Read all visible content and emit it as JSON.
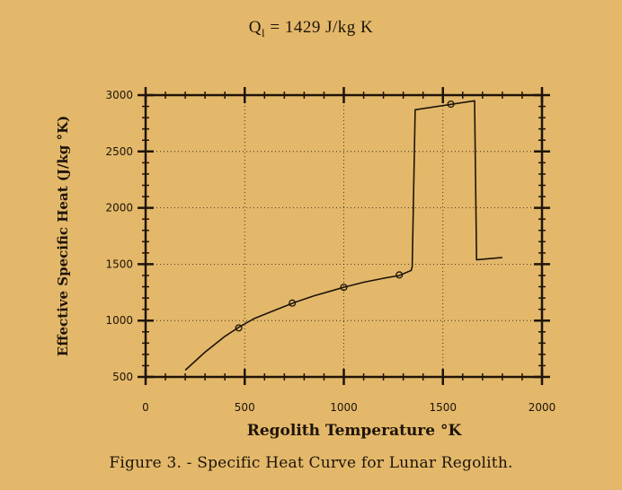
{
  "header": {
    "q_symbol": "Q",
    "q_subscript": "l",
    "q_value": "= 1429 J/kg K"
  },
  "caption": "Figure 3. - Specific Heat Curve for Lunar  Regolith.",
  "chart_data": {
    "type": "line",
    "xlabel": "Regolith Temperature °K",
    "ylabel": "Effective Specific Heat (J/kg °K)",
    "xlim": [
      0,
      2000
    ],
    "ylim": [
      500,
      3000
    ],
    "x_ticks": [
      0,
      500,
      1000,
      1500,
      2000
    ],
    "y_ticks": [
      500,
      1000,
      1500,
      2000,
      2500,
      3000
    ],
    "x_tick_labels": [
      "0",
      "500",
      "1000",
      "1500",
      "2000"
    ],
    "y_tick_labels": [
      "500",
      "1000",
      "1500",
      "2000",
      "2500",
      "3000"
    ],
    "grid": "dotted",
    "series": [
      {
        "type": "line",
        "x": [
          200,
          300,
          400,
          470,
          550,
          650,
          750,
          850,
          950,
          1000,
          1100,
          1200,
          1280,
          1340,
          1345,
          1360,
          1660,
          1670,
          1800
        ],
        "y": [
          560,
          720,
          860,
          940,
          1020,
          1090,
          1160,
          1220,
          1270,
          1295,
          1340,
          1375,
          1400,
          1445,
          1480,
          2870,
          2950,
          1540,
          1560
        ]
      },
      {
        "type": "scatter",
        "marker": "circle-open",
        "x": [
          470,
          740,
          1000,
          1280,
          1540
        ],
        "y": [
          935,
          1155,
          1295,
          1405,
          2920
        ]
      }
    ]
  }
}
